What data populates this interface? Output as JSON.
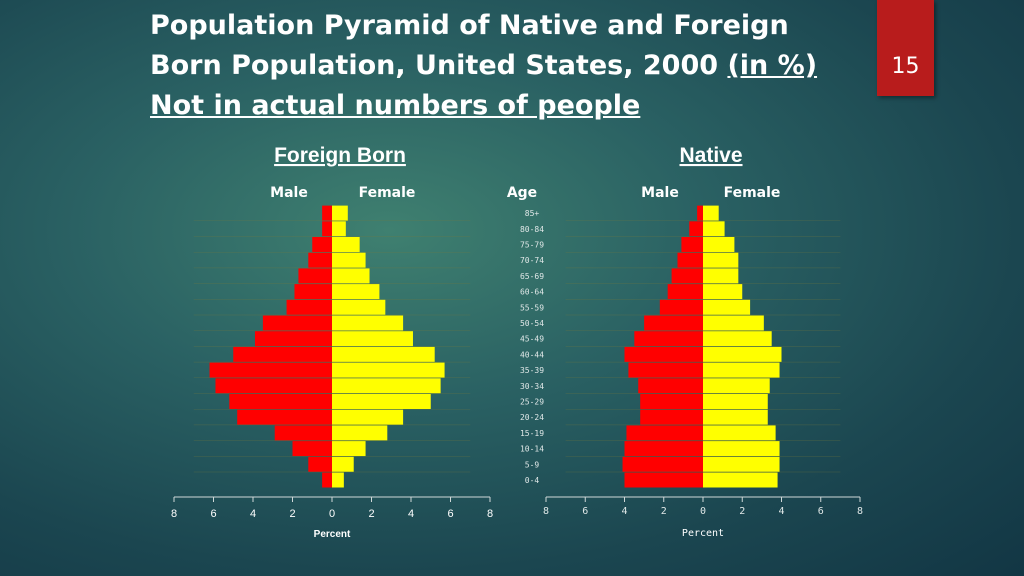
{
  "slide": {
    "title_line1": "Population Pyramid of Native and Foreign",
    "title_line2a": "Born Population, United States, 2000",
    "title_line2b": "(in %)",
    "title_line3": "Not in actual numbers of people",
    "slide_number": "15"
  },
  "colors": {
    "male": "#ff0000",
    "female": "#ffff00",
    "axis": "#cfd8d8"
  },
  "chart_data": {
    "type": "bar",
    "orientation": "horizontal",
    "age_label": "Age",
    "categories": [
      "0-4",
      "5-9",
      "10-14",
      "15-19",
      "20-24",
      "25-29",
      "30-34",
      "35-39",
      "40-44",
      "45-49",
      "50-54",
      "55-59",
      "60-64",
      "65-69",
      "70-74",
      "75-79",
      "80-84",
      "85+"
    ],
    "panels": [
      {
        "title": "Foreign Born",
        "xlabel": "Percent",
        "xlim": [
          -8,
          8
        ],
        "xticks": [
          "8",
          "6",
          "4",
          "2",
          "0",
          "2",
          "4",
          "6",
          "8"
        ],
        "series": [
          {
            "name": "Male",
            "values": [
              0.5,
              1.2,
              2.0,
              2.9,
              4.8,
              5.2,
              5.9,
              6.2,
              5.0,
              3.9,
              3.5,
              2.3,
              1.9,
              1.7,
              1.2,
              1.0,
              0.5,
              0.5
            ]
          },
          {
            "name": "Female",
            "values": [
              0.6,
              1.1,
              1.7,
              2.8,
              3.6,
              5.0,
              5.5,
              5.7,
              5.2,
              4.1,
              3.6,
              2.7,
              2.4,
              1.9,
              1.7,
              1.4,
              0.7,
              0.8
            ]
          }
        ]
      },
      {
        "title": "Native",
        "xlabel": "Percent",
        "xlim": [
          -8,
          8
        ],
        "xticks": [
          "8",
          "6",
          "4",
          "2",
          "0",
          "2",
          "4",
          "6",
          "8"
        ],
        "series": [
          {
            "name": "Male",
            "values": [
              4.0,
              4.1,
              4.0,
              3.9,
              3.2,
              3.2,
              3.3,
              3.8,
              4.0,
              3.5,
              3.0,
              2.2,
              1.8,
              1.6,
              1.3,
              1.1,
              0.7,
              0.3
            ]
          },
          {
            "name": "Female",
            "values": [
              3.8,
              3.9,
              3.9,
              3.7,
              3.3,
              3.3,
              3.4,
              3.9,
              4.0,
              3.5,
              3.1,
              2.4,
              2.0,
              1.8,
              1.8,
              1.6,
              1.1,
              0.8
            ]
          }
        ]
      }
    ]
  }
}
